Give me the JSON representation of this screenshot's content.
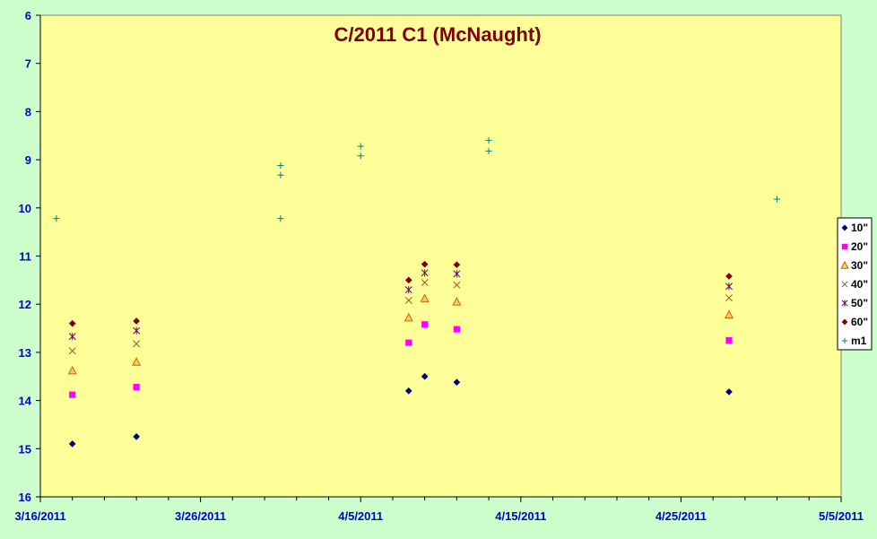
{
  "chart_data": {
    "type": "scatter",
    "title": "C/2011 C1 (McNaught)",
    "xlabel": "",
    "ylabel": "",
    "x_range": [
      "3/16/2011",
      "5/5/2011"
    ],
    "x_ticks": [
      "3/16/2011",
      "3/26/2011",
      "4/5/2011",
      "4/15/2011",
      "4/25/2011",
      "5/5/2011"
    ],
    "y_range": [
      6,
      16
    ],
    "y_reversed": true,
    "y_ticks": [
      6,
      7,
      8,
      9,
      10,
      11,
      12,
      13,
      14,
      15,
      16
    ],
    "grid": false,
    "plot_background": "#ffff99",
    "page_background": "#ccffcc",
    "legend_position": "right",
    "series": [
      {
        "name": "10\"",
        "marker": "diamond",
        "color": "#000080",
        "points": [
          {
            "x": "3/18/2011",
            "y": 14.9
          },
          {
            "x": "3/22/2011",
            "y": 14.75
          },
          {
            "x": "4/8/2011",
            "y": 13.8
          },
          {
            "x": "4/9/2011",
            "y": 13.5
          },
          {
            "x": "4/11/2011",
            "y": 13.62
          },
          {
            "x": "4/28/2011",
            "y": 13.82
          }
        ]
      },
      {
        "name": "20\"",
        "marker": "square",
        "color": "#ff00ff",
        "points": [
          {
            "x": "3/18/2011",
            "y": 13.88
          },
          {
            "x": "3/22/2011",
            "y": 13.72
          },
          {
            "x": "4/8/2011",
            "y": 12.8
          },
          {
            "x": "4/9/2011",
            "y": 12.42
          },
          {
            "x": "4/11/2011",
            "y": 12.52
          },
          {
            "x": "4/28/2011",
            "y": 12.75
          }
        ]
      },
      {
        "name": "30\"",
        "marker": "triangle",
        "color": "#cc6600",
        "points": [
          {
            "x": "3/18/2011",
            "y": 13.38
          },
          {
            "x": "3/22/2011",
            "y": 13.2
          },
          {
            "x": "4/8/2011",
            "y": 12.28
          },
          {
            "x": "4/9/2011",
            "y": 11.88
          },
          {
            "x": "4/11/2011",
            "y": 11.95
          },
          {
            "x": "4/28/2011",
            "y": 12.22
          }
        ]
      },
      {
        "name": "40\"",
        "marker": "x",
        "color": "#a0522d",
        "points": [
          {
            "x": "3/18/2011",
            "y": 12.97
          },
          {
            "x": "3/22/2011",
            "y": 12.82
          },
          {
            "x": "4/8/2011",
            "y": 11.92
          },
          {
            "x": "4/9/2011",
            "y": 11.55
          },
          {
            "x": "4/11/2011",
            "y": 11.6
          },
          {
            "x": "4/28/2011",
            "y": 11.87
          }
        ]
      },
      {
        "name": "50\"",
        "marker": "star",
        "color": "#660066",
        "points": [
          {
            "x": "3/18/2011",
            "y": 12.67
          },
          {
            "x": "3/22/2011",
            "y": 12.55
          },
          {
            "x": "4/8/2011",
            "y": 11.7
          },
          {
            "x": "4/9/2011",
            "y": 11.35
          },
          {
            "x": "4/11/2011",
            "y": 11.37
          },
          {
            "x": "4/28/2011",
            "y": 11.63
          }
        ]
      },
      {
        "name": "60\"",
        "marker": "diamond",
        "color": "#800000",
        "points": [
          {
            "x": "3/18/2011",
            "y": 12.4
          },
          {
            "x": "3/22/2011",
            "y": 12.35
          },
          {
            "x": "4/8/2011",
            "y": 11.5
          },
          {
            "x": "4/9/2011",
            "y": 11.17
          },
          {
            "x": "4/11/2011",
            "y": 11.18
          },
          {
            "x": "4/28/2011",
            "y": 11.42
          }
        ]
      },
      {
        "name": "m1",
        "marker": "plus",
        "color": "#008080",
        "points": [
          {
            "x": "3/17/2011",
            "y": 10.22
          },
          {
            "x": "3/31/2011",
            "y": 9.12
          },
          {
            "x": "3/31/2011",
            "y": 9.32
          },
          {
            "x": "3/31/2011",
            "y": 10.22
          },
          {
            "x": "4/5/2011",
            "y": 8.72
          },
          {
            "x": "4/5/2011",
            "y": 8.92
          },
          {
            "x": "4/13/2011",
            "y": 8.6
          },
          {
            "x": "4/13/2011",
            "y": 8.82
          },
          {
            "x": "5/1/2011",
            "y": 9.82
          }
        ]
      }
    ]
  }
}
